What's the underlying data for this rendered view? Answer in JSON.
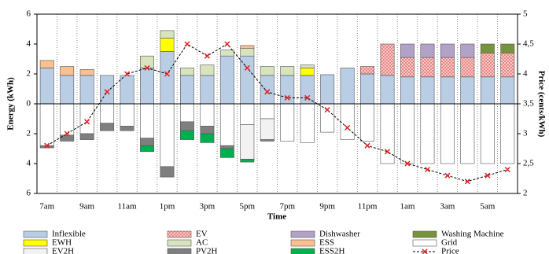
{
  "chart_data": {
    "type": "bar",
    "x_label": "Time",
    "y_label": "Energy (kWh)",
    "y2_label": "Price (cents/kWh)",
    "categories": [
      "7am",
      null,
      "9am",
      null,
      "11am",
      null,
      "1pm",
      null,
      "3pm",
      null,
      "5pm",
      null,
      "7pm",
      null,
      "9pm",
      null,
      "11pm",
      null,
      "1am",
      null,
      "3am",
      null,
      "5am",
      null
    ],
    "ylim": [
      -6,
      6
    ],
    "yticks": [
      {
        "value": -6,
        "label": "6"
      },
      {
        "value": -4,
        "label": "4"
      },
      {
        "value": -2,
        "label": "2"
      },
      0,
      2,
      4,
      6
    ],
    "y2lim": [
      2,
      5
    ],
    "y2ticks": [
      2,
      {
        "value": 2.5,
        "label": "2,5"
      },
      3,
      {
        "value": 3.5,
        "label": "3,5"
      },
      4,
      {
        "value": 4.5,
        "label": "4,5"
      },
      5
    ],
    "x_grid": true,
    "series": [
      {
        "name": "Inflexible",
        "color": "#b9cde5",
        "values": [
          2.4,
          1.9,
          1.9,
          1.9,
          1.9,
          2.4,
          3.5,
          1.9,
          1.9,
          3.2,
          3.2,
          1.9,
          1.9,
          1.9,
          1.95,
          2.4,
          2.0,
          1.9,
          1.8,
          1.8,
          1.8,
          1.8,
          1.8,
          1.8
        ]
      },
      {
        "name": "EV",
        "color": "#f8d0cc",
        "hatch": true,
        "values": [
          0,
          0,
          0,
          0,
          0,
          0,
          0,
          0,
          0,
          0,
          0,
          0,
          0,
          0,
          0,
          0,
          0.5,
          2.1,
          1.3,
          1.3,
          1.3,
          1.3,
          1.6,
          1.6
        ]
      },
      {
        "name": "Dishwasher",
        "color": "#b3a2c7",
        "values": [
          0,
          0,
          0,
          0,
          0,
          0,
          0,
          0,
          0,
          0,
          0,
          0,
          0,
          0,
          0,
          0,
          0,
          0,
          0.9,
          0.9,
          0.9,
          0.9,
          0,
          0
        ]
      },
      {
        "name": "Washing Machine",
        "color": "#77933c",
        "values": [
          0,
          0,
          0,
          0,
          0,
          0,
          0,
          0,
          0,
          0,
          0,
          0,
          0,
          0,
          0,
          0,
          0,
          0,
          0,
          0,
          0,
          0,
          0.6,
          0.6
        ]
      },
      {
        "name": "EWH",
        "color": "#ffff00",
        "values": [
          0,
          0,
          0,
          0,
          0,
          0,
          0.9,
          0,
          0,
          0,
          0,
          0,
          0,
          0.5,
          0,
          0,
          0,
          0,
          0,
          0,
          0,
          0,
          0,
          0
        ]
      },
      {
        "name": "AC",
        "color": "#d7e4bd",
        "values": [
          0,
          0,
          0,
          0,
          0,
          0.8,
          0.5,
          0.5,
          0.7,
          0.4,
          0.5,
          0.6,
          0.6,
          0.2,
          0,
          0,
          0,
          0,
          0,
          0,
          0,
          0,
          0,
          0
        ]
      },
      {
        "name": "ESS",
        "color": "#fac090",
        "values": [
          0.5,
          0.6,
          0.4,
          0,
          0,
          0,
          0,
          0,
          0,
          0,
          0.2,
          0,
          0,
          0,
          0,
          0,
          0,
          0,
          0,
          0,
          0,
          0,
          0,
          0
        ]
      },
      {
        "name": "Grid",
        "color": "#ffffff",
        "values": [
          -2.8,
          -2.1,
          -2.0,
          -1.3,
          -1.5,
          -2.3,
          -4.2,
          -1.2,
          -1.5,
          -2.8,
          -1.4,
          -1.0,
          -2.5,
          -2.6,
          -1.9,
          -2.4,
          -2.5,
          -4.0,
          -4.0,
          -4.0,
          -4.0,
          -4.0,
          -4.0,
          -4.0
        ]
      },
      {
        "name": "EV2H",
        "color": "#f2f2f2",
        "values": [
          0,
          0,
          0,
          0,
          0,
          0,
          0,
          0,
          0,
          0,
          -2.3,
          -1.4,
          0,
          0,
          0,
          0,
          0,
          0,
          0,
          0,
          0,
          0,
          0,
          0
        ]
      },
      {
        "name": "PV2H",
        "color": "#7f7f7f",
        "values": [
          -0.15,
          -0.4,
          -0.4,
          -0.5,
          -0.3,
          -0.5,
          -0.7,
          -0.6,
          -0.5,
          -0.2,
          0,
          -0.1,
          0,
          0,
          0,
          0,
          0,
          0,
          0,
          0,
          0,
          0,
          0,
          0
        ]
      },
      {
        "name": "ESS2H",
        "color": "#00b050",
        "values": [
          0,
          0,
          0,
          0,
          0,
          -0.4,
          0,
          -0.6,
          -0.6,
          -0.6,
          -0.2,
          0,
          0,
          0,
          0,
          0,
          0,
          0,
          0,
          0,
          0,
          0,
          0,
          0
        ]
      },
      {
        "name": "Price",
        "color": "#e02020",
        "line_color": "#000000",
        "type": "line",
        "axis": "y2",
        "values": [
          2.8,
          3.0,
          3.2,
          3.7,
          4.0,
          4.1,
          4.0,
          4.5,
          4.3,
          4.5,
          4.1,
          3.7,
          3.6,
          3.6,
          3.4,
          3.1,
          2.8,
          2.7,
          2.5,
          2.4,
          2.3,
          2.2,
          2.3,
          2.4
        ]
      }
    ]
  }
}
